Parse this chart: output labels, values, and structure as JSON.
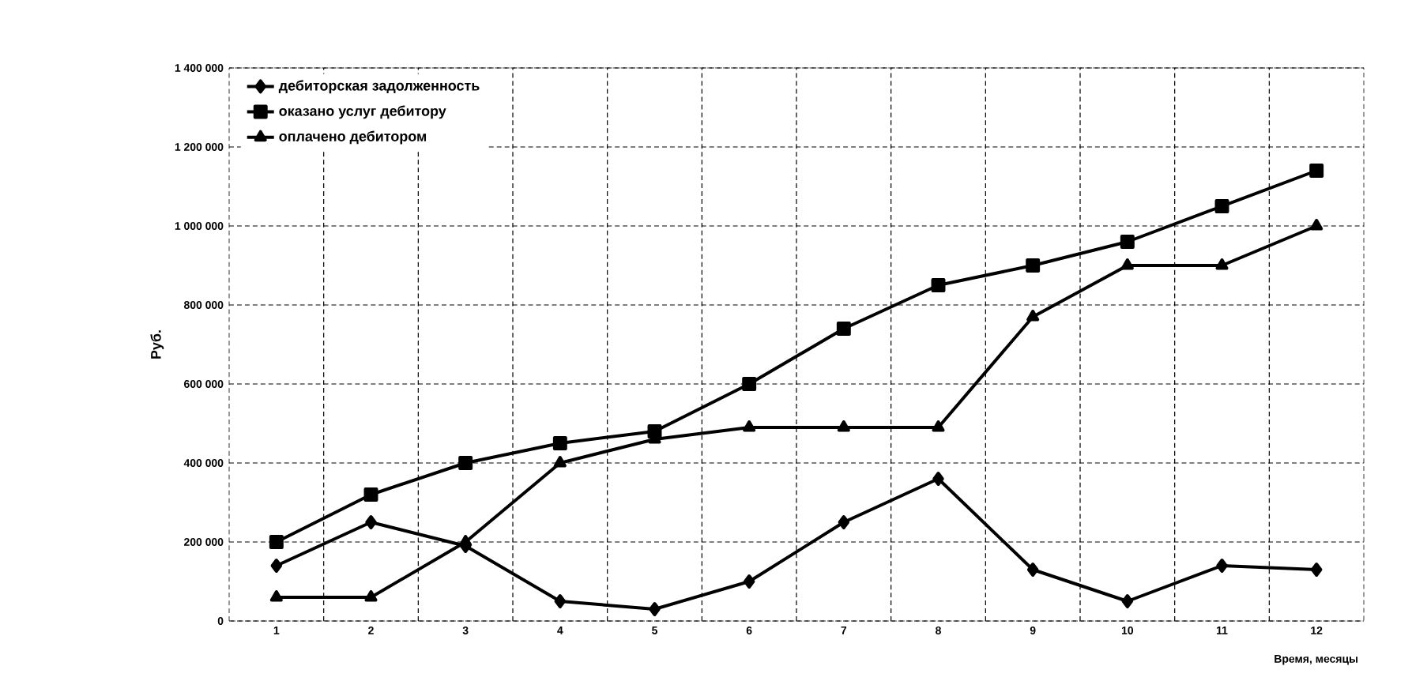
{
  "chart_data": {
    "type": "line",
    "xlabel": "Время, месяцы",
    "ylabel": "Руб.",
    "categories": [
      "1",
      "2",
      "3",
      "4",
      "5",
      "6",
      "7",
      "8",
      "9",
      "10",
      "11",
      "12"
    ],
    "series": [
      {
        "name": "дебиторская задолженность",
        "color": "#000000",
        "marker": "diamond",
        "values": [
          140000,
          250000,
          190000,
          50000,
          30000,
          100000,
          250000,
          360000,
          130000,
          50000,
          140000,
          130000
        ]
      },
      {
        "name": "оказано услуг дебитору",
        "color": "#000000",
        "marker": "square",
        "values": [
          200000,
          320000,
          400000,
          450000,
          480000,
          600000,
          740000,
          850000,
          900000,
          960000,
          1050000,
          1140000
        ]
      },
      {
        "name": "оплачено дебитором",
        "color": "#000000",
        "marker": "triangle",
        "values": [
          60000,
          60000,
          200000,
          400000,
          460000,
          490000,
          490000,
          490000,
          770000,
          900000,
          900000,
          1000000
        ]
      }
    ],
    "ylim": [
      0,
      1400000
    ],
    "yticks": [
      {
        "value": 0,
        "label": "0"
      },
      {
        "value": 200000,
        "label": "200 000"
      },
      {
        "value": 400000,
        "label": "400 000"
      },
      {
        "value": 600000,
        "label": "600 000"
      },
      {
        "value": 800000,
        "label": "800 000"
      },
      {
        "value": 1000000,
        "label": "1 000 000"
      },
      {
        "value": 1200000,
        "label": "1 200 000"
      },
      {
        "value": 1400000,
        "label": "1 400 000"
      }
    ],
    "grid": true,
    "legend": "top left",
    "line_style": "solid"
  }
}
